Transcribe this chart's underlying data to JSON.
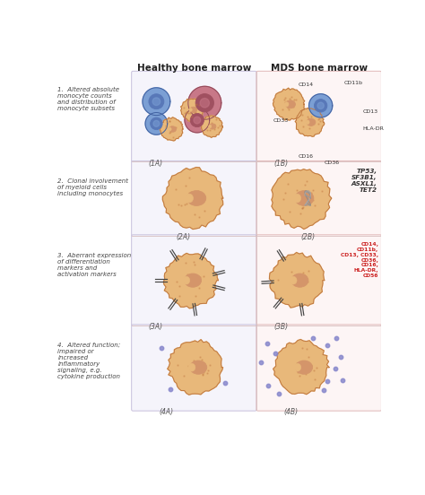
{
  "title_left": "Healthy bone marrow",
  "title_right": "MDS bone marrow",
  "bg_color": "#ffffff",
  "row_labels": [
    "1.  Altered absolute\nmonocyte counts\nand distribution of\nmonocyte subsets",
    "2.  Clonal involvement\nof myeloid cells\nincluding monocytes",
    "3.  Aberrant expression\nof differentiation\nmarkers and\nactivation markers",
    "4.  Altered function;\nimpaired or\nincreased\ninflammatory\nsignaling, e.g.\ncytokine production"
  ],
  "cell_body_color": "#e8b87a",
  "cell_nucleus_color": "#d4956a",
  "cell_border_color": "#c07840",
  "blue_body": "#7b9fd4",
  "blue_nucleus": "#5878b8",
  "blue_border": "#4060a0",
  "pink_body": "#c87888",
  "pink_nucleus": "#a05060",
  "pink_border": "#904858",
  "marker_color_normal": "#333333",
  "marker_color_mds": "#cc2222",
  "dot_color": "#8888cc",
  "gene_labels_2b": "TP53,\nSF3B1,\nASXL1,\nTET2",
  "left_panel_bg": "#f5f4fb",
  "left_panel_border": "#c8c0dc",
  "right_panel_bg": "#fdf5f5",
  "right_panel_border": "#e0b8b8",
  "row_divider_color": "#d8c0c0",
  "col_divider_color": "#d8c0c0"
}
